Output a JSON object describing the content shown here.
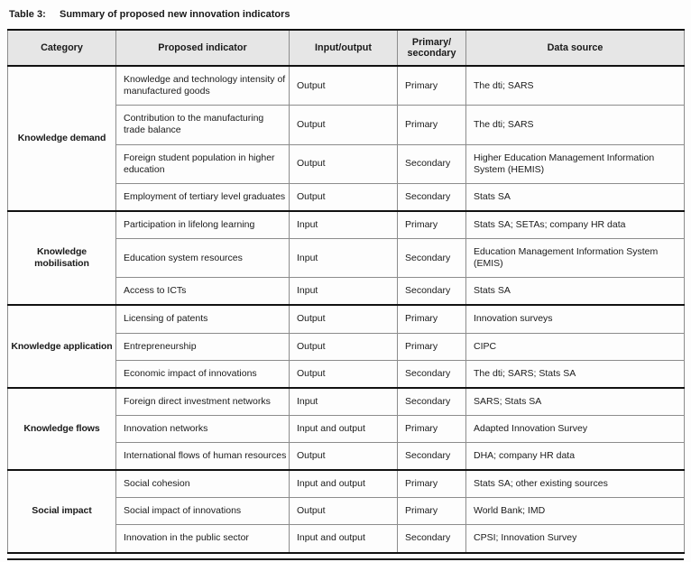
{
  "caption": {
    "label": "Table 3:",
    "title": "Summary of proposed new innovation indicators"
  },
  "table": {
    "headers": [
      "Category",
      "Proposed indicator",
      "Input/output",
      "Primary/ secondary",
      "Data source"
    ],
    "groups": [
      {
        "category": "Knowledge demand",
        "rows": [
          {
            "indicator": "Knowledge and technology intensity of manufactured goods",
            "io": "Output",
            "ps": "Primary",
            "source": "The dti; SARS"
          },
          {
            "indicator": "Contribution to the manufacturing trade balance",
            "io": "Output",
            "ps": "Primary",
            "source": "The dti; SARS"
          },
          {
            "indicator": "Foreign student population in higher education",
            "io": "Output",
            "ps": "Secondary",
            "source": "Higher Education Management Information System (HEMIS)"
          },
          {
            "indicator": "Employment of tertiary level graduates",
            "io": "Output",
            "ps": "Secondary",
            "source": "Stats SA"
          }
        ]
      },
      {
        "category": "Knowledge mobilisation",
        "rows": [
          {
            "indicator": "Participation in lifelong learning",
            "io": "Input",
            "ps": "Primary",
            "source": "Stats SA; SETAs; company HR data"
          },
          {
            "indicator": "Education system resources",
            "io": "Input",
            "ps": "Secondary",
            "source": "Education Management Information System (EMIS)"
          },
          {
            "indicator": "Access to ICTs",
            "io": "Input",
            "ps": "Secondary",
            "source": "Stats SA"
          }
        ]
      },
      {
        "category": "Knowledge application",
        "rows": [
          {
            "indicator": "Licensing of patents",
            "io": "Output",
            "ps": "Primary",
            "source": "Innovation surveys"
          },
          {
            "indicator": "Entrepreneurship",
            "io": "Output",
            "ps": "Primary",
            "source": "CIPC"
          },
          {
            "indicator": "Economic impact of innovations",
            "io": "Output",
            "ps": "Secondary",
            "source": "The dti; SARS; Stats SA"
          }
        ]
      },
      {
        "category": "Knowledge flows",
        "rows": [
          {
            "indicator": "Foreign direct investment networks",
            "io": "Input",
            "ps": "Secondary",
            "source": "SARS; Stats SA"
          },
          {
            "indicator": "Innovation networks",
            "io": "Input and output",
            "ps": "Primary",
            "source": "Adapted Innovation Survey"
          },
          {
            "indicator": "International flows of human resources",
            "io": "Output",
            "ps": "Secondary",
            "source": "DHA; company HR data"
          }
        ]
      },
      {
        "category": "Social impact",
        "rows": [
          {
            "indicator": "Social cohesion",
            "io": "Input and output",
            "ps": "Primary",
            "source": "Stats SA; other existing sources"
          },
          {
            "indicator": "Social impact of innovations",
            "io": "Output",
            "ps": "Primary",
            "source": "World Bank; IMD"
          },
          {
            "indicator": "Innovation in the public sector",
            "io": "Input and output",
            "ps": "Secondary",
            "source": "CPSI; Innovation Survey"
          }
        ]
      }
    ]
  }
}
